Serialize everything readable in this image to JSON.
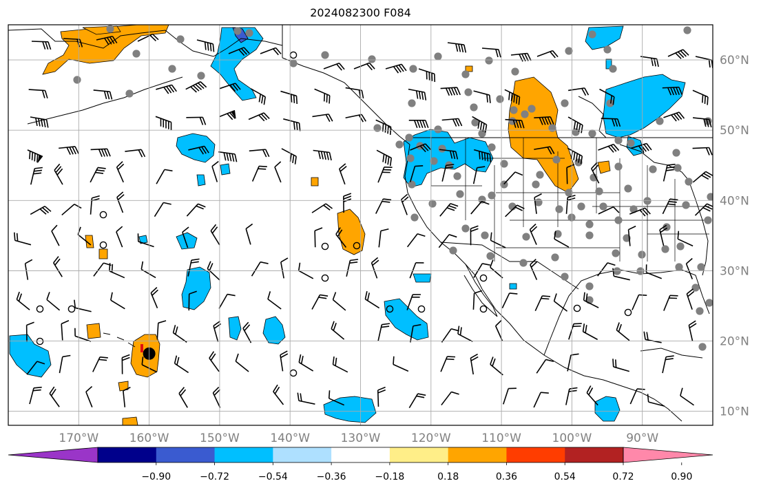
{
  "title": "2024082300 F084",
  "map": {
    "projection": "PlateCarree",
    "lon_range": [
      -180,
      -80
    ],
    "lat_range": [
      8,
      65
    ],
    "gridlines": true,
    "lat_labels": [
      "10°N",
      "20°N",
      "30°N",
      "40°N",
      "50°N",
      "60°N"
    ],
    "lat_values": [
      10,
      20,
      30,
      40,
      50,
      60
    ],
    "lon_labels": [
      "170°W",
      "160°W",
      "150°W",
      "140°W",
      "130°W",
      "120°W",
      "110°W",
      "100°W",
      "90°W"
    ],
    "lon_values": [
      -170,
      -160,
      -150,
      -140,
      -130,
      -120,
      -110,
      -100,
      -90
    ],
    "layers": [
      "coastlines",
      "borders",
      "us-states",
      "wind-barbs",
      "station-dots",
      "filled-contours"
    ],
    "tropical_cyclone_marker": {
      "lon": -160,
      "lat": 18.2
    }
  },
  "colorbar": {
    "orientation": "horizontal",
    "extend": "both",
    "tick_labels": [
      "−0.90",
      "−0.72",
      "−0.54",
      "−0.36",
      "−0.18",
      "0.18",
      "0.36",
      "0.54",
      "0.72",
      "0.90"
    ],
    "colors": [
      "#9a35c8",
      "#00008b",
      "#3a5bd0",
      "#00bfff",
      "#aee0ff",
      "#ffffff",
      "#ffee88",
      "#ffa500",
      "#ff3d00",
      "#b22222",
      "#ff88aa"
    ]
  },
  "contour_colors": {
    "positive": "#ffa500",
    "negative": "#00bfff",
    "strong_negative": "#3a5bd0"
  }
}
